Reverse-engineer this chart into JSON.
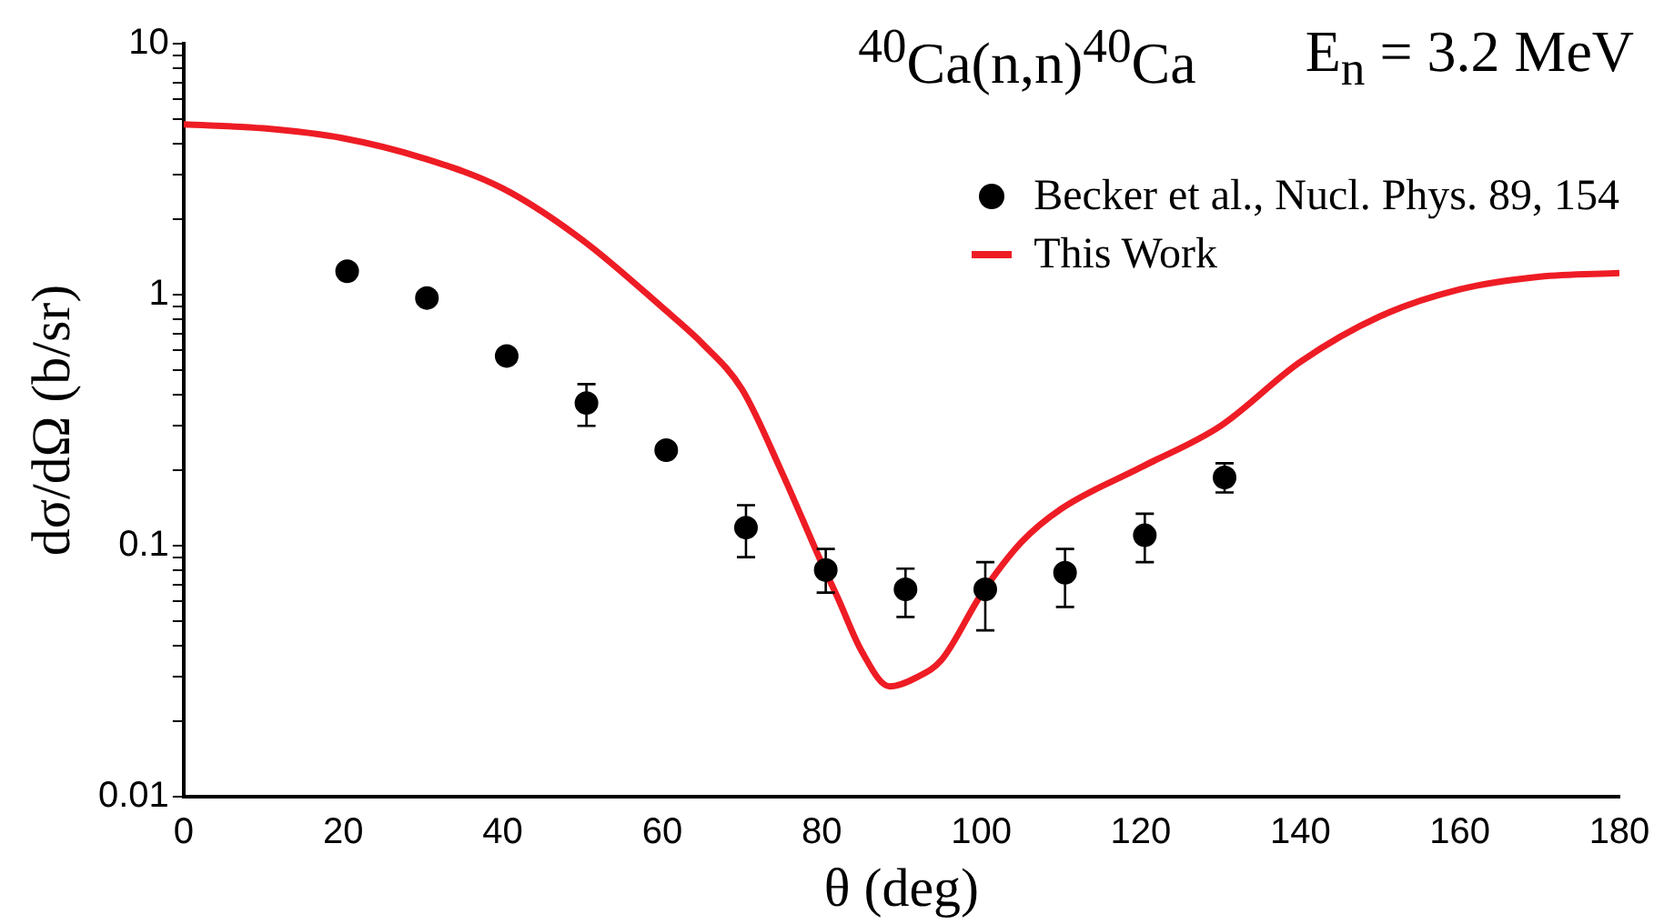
{
  "chart_data": {
    "type": "scatter",
    "title": "$^{40}$Ca(n,n)$^{40}$Ca",
    "annotations": [
      "E$_{n}$ = 3.2 MeV"
    ],
    "xlabel": "θ (deg)",
    "ylabel": "dσ/dΩ (b/sr)",
    "log": "y",
    "legend": "top right",
    "marker": "circle",
    "xlim": [
      0,
      180
    ],
    "xticks": [
      0,
      20,
      40,
      60,
      80,
      100,
      120,
      140,
      160,
      180
    ],
    "ylim": [
      0.01,
      10
    ],
    "yticks": [
      {
        "value": 0.01,
        "label": "0.01"
      },
      {
        "value": 0.02,
        "label": null
      },
      {
        "value": 0.03,
        "label": null
      },
      {
        "value": 0.04,
        "label": null
      },
      {
        "value": 0.05,
        "label": null
      },
      {
        "value": 0.06,
        "label": null
      },
      {
        "value": 0.07,
        "label": null
      },
      {
        "value": 0.08,
        "label": null
      },
      {
        "value": 0.09,
        "label": null
      },
      {
        "value": 0.1,
        "label": "0.1"
      },
      {
        "value": 0.2,
        "label": null
      },
      {
        "value": 0.3,
        "label": null
      },
      {
        "value": 0.4,
        "label": null
      },
      {
        "value": 0.5,
        "label": null
      },
      {
        "value": 0.6,
        "label": null
      },
      {
        "value": 0.7,
        "label": null
      },
      {
        "value": 0.8,
        "label": null
      },
      {
        "value": 0.9,
        "label": null
      },
      {
        "value": 1,
        "label": "1"
      },
      {
        "value": 2,
        "label": null
      },
      {
        "value": 3,
        "label": null
      },
      {
        "value": 4,
        "label": null
      },
      {
        "value": 5,
        "label": null
      },
      {
        "value": 6,
        "label": null
      },
      {
        "value": 7,
        "label": null
      },
      {
        "value": 8,
        "label": null
      },
      {
        "value": 9,
        "label": null
      },
      {
        "value": 10,
        "label": "10"
      }
    ],
    "series": [
      {
        "name": "Becker et al., Nucl. Phys. 89, 154",
        "color": "#000000",
        "x": [
          20.5,
          30.5,
          40.5,
          50.5,
          60.5,
          70.5,
          80.5,
          90.5,
          100.5,
          110.5,
          120.5,
          130.5
        ],
        "values": [
          1.24,
          0.97,
          0.57,
          0.37,
          0.24,
          0.118,
          0.08,
          0.067,
          0.067,
          0.078,
          0.11,
          0.187
        ],
        "errors": [
          null,
          null,
          null,
          [
            0.3,
            0.44
          ],
          null,
          [
            0.09,
            0.145
          ],
          [
            0.065,
            0.097
          ],
          [
            0.052,
            0.081
          ],
          [
            0.046,
            0.086
          ],
          [
            0.057,
            0.097
          ],
          [
            0.086,
            0.134
          ],
          [
            0.163,
            0.213
          ]
        ]
      },
      {
        "name": "This Work",
        "type": "line",
        "color": "#ee1c24",
        "marker": "none",
        "x": [
          0,
          10,
          20,
          30,
          40,
          50,
          60,
          65,
          70,
          75,
          80,
          82,
          85,
          88.5,
          92,
          95,
          100,
          105,
          110,
          120,
          130,
          140,
          150,
          160,
          170,
          180
        ],
        "values": [
          4.77,
          4.6,
          4.2,
          3.5,
          2.65,
          1.65,
          0.89,
          0.64,
          0.42,
          0.196,
          0.085,
          0.062,
          0.038,
          0.0275,
          0.03,
          0.035,
          0.064,
          0.103,
          0.14,
          0.205,
          0.3,
          0.54,
          0.82,
          1.05,
          1.18,
          1.22
        ]
      }
    ]
  }
}
